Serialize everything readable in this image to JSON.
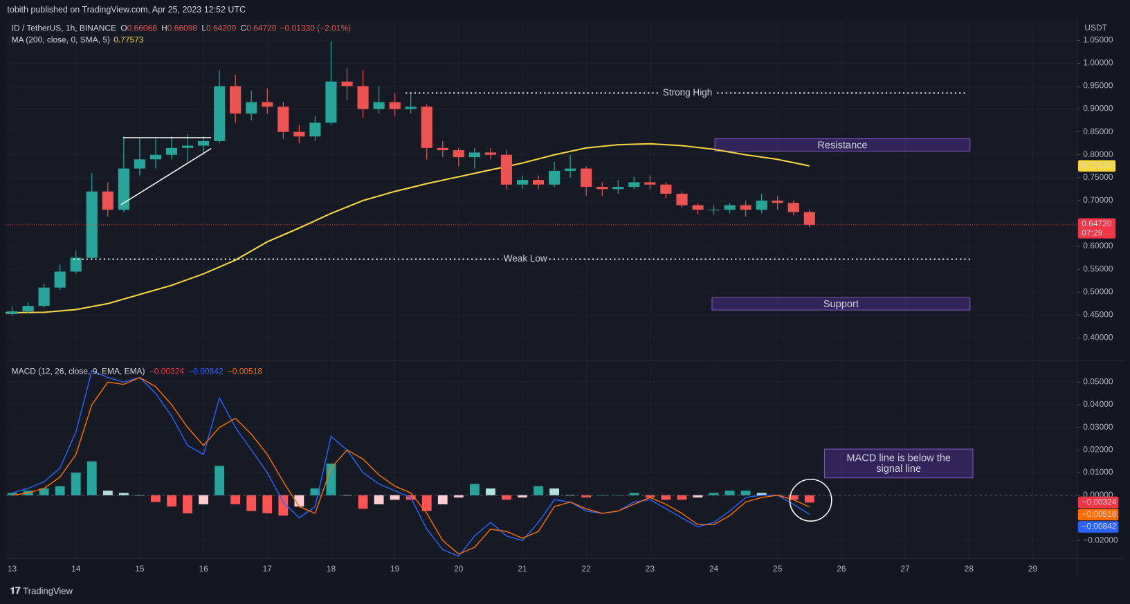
{
  "header": {
    "publisher": "tobith published on TradingView.com, Apr 25, 2023 12:52 UTC",
    "logo": "TradingView"
  },
  "chart_data": [
    {
      "type": "candlestick",
      "symbol": "ID / TetherUS, 1h, BINANCE",
      "ohlc_readout": [
        {
          "key": "O",
          "value": "0.66068"
        },
        {
          "key": "H",
          "value": "0.66098"
        },
        {
          "key": "L",
          "value": "0.64200"
        },
        {
          "key": "C",
          "value": "0.64720"
        }
      ],
      "change": "−0.01330 (−2.01%)",
      "currency": "USDT",
      "colors": {
        "up": "#26a69a",
        "down": "#ef5350"
      },
      "xlim": [
        12.9,
        29.7
      ],
      "xticks": [
        13,
        14,
        15,
        16,
        17,
        18,
        19,
        20,
        21,
        22,
        23,
        24,
        25,
        26,
        27,
        28,
        29
      ],
      "ylim": [
        0.351,
        1.094
      ],
      "yticks": [
        {
          "value": 0.4,
          "label": "0.40000"
        },
        {
          "value": 0.45,
          "label": "0.45000"
        },
        {
          "value": 0.5,
          "label": "0.50000"
        },
        {
          "value": 0.55,
          "label": "0.55000"
        },
        {
          "value": 0.6,
          "label": "0.60000"
        },
        {
          "value": 0.65,
          "label": "0.65000"
        },
        {
          "value": 0.7,
          "label": "0.70000"
        },
        {
          "value": 0.75,
          "label": "0.75000"
        },
        {
          "value": 0.8,
          "label": "0.80000"
        },
        {
          "value": 0.85,
          "label": "0.85000"
        },
        {
          "value": 0.9,
          "label": "0.90000"
        },
        {
          "value": 0.95,
          "label": "0.95000"
        },
        {
          "value": 1.0,
          "label": "1.00000"
        },
        {
          "value": 1.05,
          "label": "1.05000"
        }
      ],
      "x": [
        13,
        13.25,
        13.5,
        13.75,
        14,
        14.25,
        14.5,
        14.75,
        15,
        15.25,
        15.5,
        15.75,
        16,
        16.25,
        16.5,
        16.75,
        17,
        17.25,
        17.5,
        17.75,
        18,
        18.25,
        18.5,
        18.75,
        19,
        19.25,
        19.5,
        19.75,
        20,
        20.25,
        20.5,
        20.75,
        21,
        21.25,
        21.5,
        21.75,
        22,
        22.25,
        22.5,
        22.75,
        23,
        23.25,
        23.5,
        23.75,
        24,
        24.25,
        24.5,
        24.75,
        25,
        25.25,
        25.5
      ],
      "open": [
        0.452,
        0.458,
        0.47,
        0.51,
        0.545,
        0.575,
        0.72,
        0.68,
        0.77,
        0.79,
        0.8,
        0.815,
        0.82,
        0.83,
        0.95,
        0.89,
        0.915,
        0.905,
        0.85,
        0.84,
        0.87,
        0.96,
        0.95,
        0.9,
        0.915,
        0.9,
        0.905,
        0.815,
        0.81,
        0.795,
        0.805,
        0.8,
        0.735,
        0.745,
        0.735,
        0.765,
        0.77,
        0.73,
        0.725,
        0.73,
        0.74,
        0.735,
        0.715,
        0.69,
        0.68,
        0.68,
        0.69,
        0.68,
        0.7,
        0.695,
        0.675
      ],
      "high": [
        0.468,
        0.478,
        0.518,
        0.56,
        0.59,
        0.76,
        0.74,
        0.84,
        0.835,
        0.835,
        0.84,
        0.845,
        0.84,
        0.985,
        0.975,
        0.94,
        0.945,
        0.915,
        0.865,
        0.885,
        1.048,
        0.99,
        0.985,
        0.95,
        0.935,
        0.935,
        0.91,
        0.83,
        0.815,
        0.815,
        0.815,
        0.81,
        0.755,
        0.755,
        0.785,
        0.8,
        0.775,
        0.74,
        0.745,
        0.752,
        0.755,
        0.74,
        0.72,
        0.695,
        0.69,
        0.695,
        0.7,
        0.715,
        0.71,
        0.7,
        0.68
      ],
      "low": [
        0.448,
        0.455,
        0.466,
        0.505,
        0.54,
        0.57,
        0.665,
        0.675,
        0.755,
        0.77,
        0.79,
        0.785,
        0.8,
        0.825,
        0.87,
        0.875,
        0.89,
        0.835,
        0.825,
        0.83,
        0.865,
        0.92,
        0.88,
        0.89,
        0.885,
        0.89,
        0.79,
        0.795,
        0.775,
        0.77,
        0.79,
        0.725,
        0.725,
        0.725,
        0.73,
        0.75,
        0.71,
        0.71,
        0.715,
        0.725,
        0.725,
        0.705,
        0.685,
        0.67,
        0.67,
        0.672,
        0.665,
        0.672,
        0.68,
        0.668,
        0.642
      ],
      "close": [
        0.458,
        0.47,
        0.51,
        0.545,
        0.575,
        0.72,
        0.68,
        0.77,
        0.79,
        0.8,
        0.815,
        0.82,
        0.83,
        0.95,
        0.89,
        0.915,
        0.905,
        0.85,
        0.84,
        0.87,
        0.96,
        0.95,
        0.9,
        0.915,
        0.9,
        0.905,
        0.815,
        0.81,
        0.795,
        0.805,
        0.8,
        0.735,
        0.745,
        0.735,
        0.765,
        0.77,
        0.73,
        0.725,
        0.73,
        0.74,
        0.735,
        0.715,
        0.69,
        0.68,
        0.68,
        0.69,
        0.68,
        0.7,
        0.695,
        0.675,
        0.6472
      ],
      "last_price": {
        "label": "0.64720",
        "countdown": "07:29",
        "color": "#f23645"
      },
      "ma": {
        "name": "MA (200, close, 0, SMA, 5)",
        "readout": "0.77573",
        "color": "#f7d63e",
        "x": [
          12.9,
          13.5,
          14,
          14.5,
          15,
          15.5,
          16,
          16.5,
          17,
          17.5,
          18,
          18.5,
          19,
          19.5,
          20,
          20.5,
          21,
          21.5,
          22,
          22.5,
          23,
          23.5,
          24,
          24.5,
          25,
          25.5
        ],
        "values": [
          0.455,
          0.456,
          0.462,
          0.475,
          0.495,
          0.515,
          0.54,
          0.57,
          0.61,
          0.64,
          0.672,
          0.7,
          0.72,
          0.737,
          0.752,
          0.767,
          0.782,
          0.8,
          0.815,
          0.822,
          0.824,
          0.82,
          0.812,
          0.8,
          0.79,
          0.77573
        ]
      },
      "annotations": {
        "strong_high": {
          "label": "Strong High",
          "value": 0.935
        },
        "weak_low": {
          "label": "Weak Low",
          "value": 0.572
        },
        "resistance": {
          "label": "Resistance",
          "range": [
            0.808,
            0.835
          ]
        },
        "support": {
          "label": "Support",
          "range": [
            0.461,
            0.488
          ]
        }
      }
    },
    {
      "type": "macd",
      "title": "MACD (12, 26, close, 9, EMA, EMA)",
      "readouts": [
        {
          "text": "−0.00324",
          "color": "#f23645"
        },
        {
          "text": "−0.00842",
          "color": "#2962ff"
        },
        {
          "text": "−0.00518",
          "color": "#ff6d00"
        }
      ],
      "ylim": [
        -0.028,
        0.0596
      ],
      "yticks": [
        {
          "value": -0.02,
          "label": "−0.02000"
        },
        {
          "value": 0,
          "label": "0.00000"
        },
        {
          "value": 0.01,
          "label": "0.01000"
        },
        {
          "value": 0.02,
          "label": "0.02000"
        },
        {
          "value": 0.03,
          "label": "0.03000"
        },
        {
          "value": 0.04,
          "label": "0.04000"
        },
        {
          "value": 0.05,
          "label": "0.05000"
        }
      ],
      "xlim": [
        12.9,
        29.7
      ],
      "x": [
        13,
        13.25,
        13.5,
        13.75,
        14,
        14.25,
        14.5,
        14.75,
        15,
        15.25,
        15.5,
        15.75,
        16,
        16.25,
        16.5,
        16.75,
        17,
        17.25,
        17.5,
        17.75,
        18,
        18.25,
        18.5,
        18.75,
        19,
        19.25,
        19.5,
        19.75,
        20,
        20.25,
        20.5,
        20.75,
        21,
        21.25,
        21.5,
        21.75,
        22,
        22.25,
        22.5,
        22.75,
        23,
        23.25,
        23.5,
        23.75,
        24,
        24.25,
        24.5,
        24.75,
        25,
        25.25,
        25.5
      ],
      "macd": {
        "color": "#2962ff",
        "values": [
          0.001,
          0.003,
          0.006,
          0.012,
          0.028,
          0.055,
          0.052,
          0.05,
          0.052,
          0.045,
          0.035,
          0.022,
          0.018,
          0.043,
          0.03,
          0.02,
          0.01,
          -0.003,
          -0.01,
          -0.005,
          0.026,
          0.02,
          0.01,
          0.005,
          0.002,
          -0.001,
          -0.015,
          -0.024,
          -0.027,
          -0.018,
          -0.012,
          -0.018,
          -0.02,
          -0.012,
          -0.002,
          -0.003,
          -0.007,
          -0.008,
          -0.007,
          -0.003,
          -0.002,
          -0.006,
          -0.01,
          -0.014,
          -0.012,
          -0.007,
          -0.001,
          0,
          0,
          -0.004,
          -0.00842
        ]
      },
      "signal": {
        "color": "#ff6d00",
        "values": [
          0,
          0.001,
          0.003,
          0.008,
          0.018,
          0.04,
          0.05,
          0.049,
          0.052,
          0.048,
          0.04,
          0.03,
          0.022,
          0.03,
          0.034,
          0.027,
          0.018,
          0.006,
          -0.005,
          -0.008,
          0.012,
          0.02,
          0.016,
          0.009,
          0.004,
          0.001,
          -0.008,
          -0.02,
          -0.026,
          -0.023,
          -0.015,
          -0.016,
          -0.019,
          -0.016,
          -0.005,
          -0.003,
          -0.006,
          -0.008,
          -0.007,
          -0.004,
          -0.001,
          -0.004,
          -0.008,
          -0.013,
          -0.013,
          -0.009,
          -0.003,
          -0.001,
          0,
          -0.002,
          -0.00518
        ]
      },
      "histogram": {
        "colors": {
          "up_rising": "#26a69a",
          "up_falling": "#b2dfdb",
          "down_falling": "#ff5252",
          "down_rising": "#ffcdd2"
        },
        "values": [
          0.001,
          0.002,
          0.003,
          0.004,
          0.01,
          0.015,
          0.002,
          0.001,
          0,
          -0.003,
          -0.005,
          -0.008,
          -0.004,
          0.013,
          -0.004,
          -0.007,
          -0.008,
          -0.009,
          -0.005,
          0.003,
          0.014,
          0,
          -0.006,
          -0.004,
          -0.002,
          -0.002,
          -0.007,
          -0.004,
          -0.001,
          0.005,
          0.003,
          -0.002,
          -0.001,
          0.004,
          0.003,
          0,
          -0.001,
          0,
          0,
          0.001,
          -0.001,
          -0.002,
          -0.002,
          -0.001,
          0.001,
          0.002,
          0.002,
          0.001,
          0,
          -0.002,
          -0.00324
        ]
      },
      "note": [
        "MACD line is below the",
        "signal line"
      ]
    }
  ]
}
